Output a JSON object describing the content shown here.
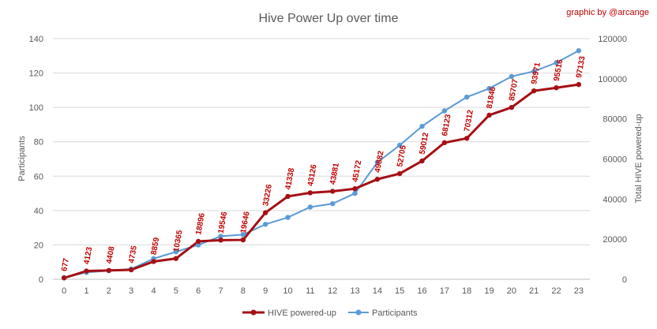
{
  "chart_data": {
    "type": "line",
    "title": "Hive Power Up over time",
    "credit": "graphic by @arcange",
    "ylabel_left": "Participants",
    "ylabel_right": "Total HIVE powered-up",
    "x": [
      "0",
      "1",
      "2",
      "3",
      "4",
      "5",
      "6",
      "7",
      "8",
      "9",
      "10",
      "11",
      "12",
      "13",
      "14",
      "15",
      "16",
      "17",
      "18",
      "19",
      "20",
      "21",
      "22",
      "23"
    ],
    "y_left": {
      "min": 0,
      "max": 140,
      "ticks": [
        "0",
        "20",
        "40",
        "60",
        "80",
        "100",
        "120",
        "140"
      ]
    },
    "y_right": {
      "min": 0,
      "max": 120000,
      "ticks": [
        "0",
        "20000",
        "40000",
        "60000",
        "80000",
        "100000",
        "120000"
      ]
    },
    "grid": true,
    "legend_position": "bottom",
    "series": [
      {
        "name": "HIVE powered-up",
        "axis": "right",
        "color": "#a50f15",
        "values": [
          677,
          4123,
          4408,
          4735,
          8859,
          10365,
          18896,
          19546,
          19646,
          33226,
          41338,
          43126,
          43881,
          45172,
          49882,
          52705,
          59012,
          68123,
          70312,
          81846,
          85707,
          93971,
          95516,
          97133
        ],
        "labels": [
          "677",
          "4123",
          "4408",
          "4735",
          "8859",
          "10365",
          "18896",
          "19546",
          "19646",
          "33226",
          "41338",
          "43126",
          "43881",
          "45172",
          "49882",
          "52705",
          "59012",
          "68123",
          "70312",
          "81846",
          "85707",
          "93971",
          "95516",
          "97133"
        ]
      },
      {
        "name": "Participants",
        "axis": "left",
        "color": "#5b9bd5",
        "values": [
          1,
          4,
          5,
          6,
          12,
          16,
          20,
          25,
          26,
          32,
          36,
          42,
          44,
          50,
          68,
          78,
          89,
          98,
          106,
          111,
          118,
          121,
          126,
          133
        ]
      }
    ]
  }
}
